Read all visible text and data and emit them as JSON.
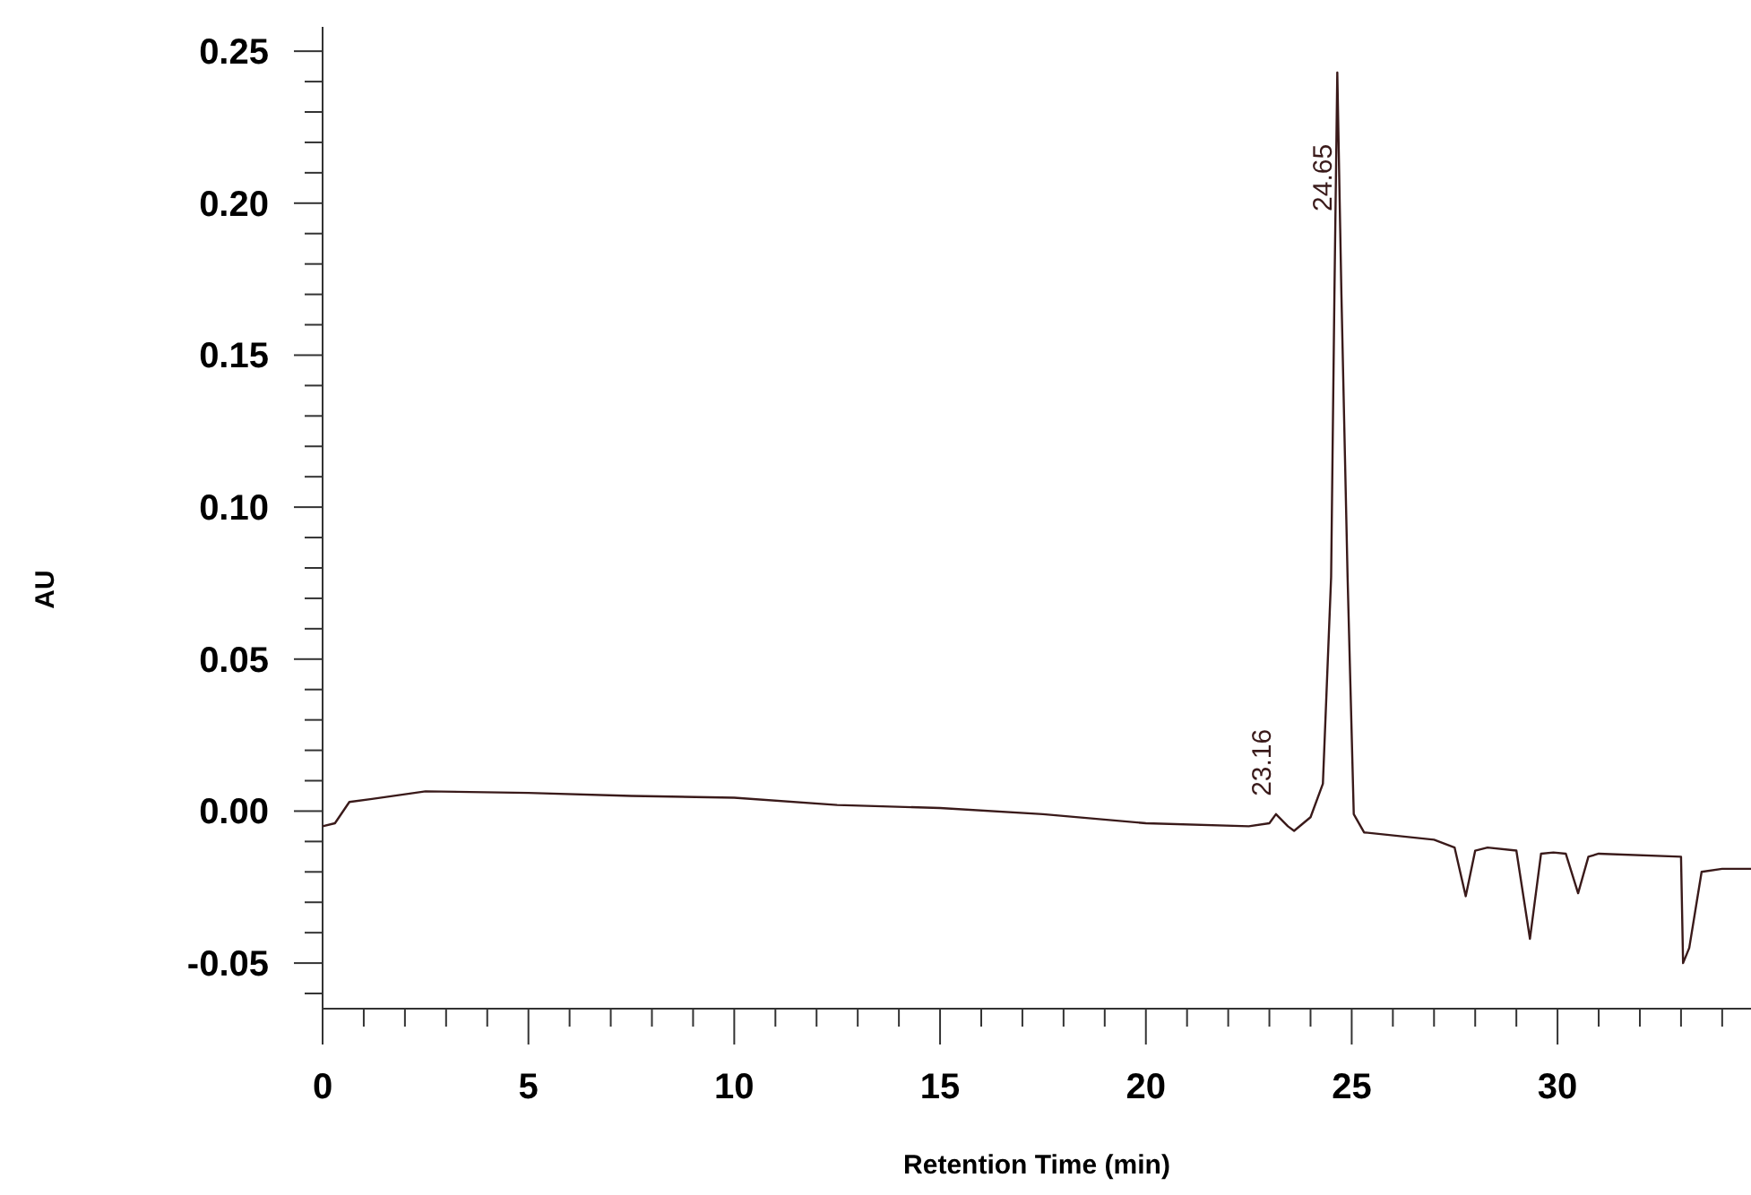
{
  "chart_data": {
    "type": "line",
    "xlabel": "Retention Time (min)",
    "ylabel": "AU",
    "xlim": [
      0,
      34.7
    ],
    "ylim": [
      -0.065,
      0.258
    ],
    "xticks": [
      0,
      {
        "value": 1,
        "label": null
      },
      {
        "value": 2,
        "label": null
      },
      {
        "value": 3,
        "label": null
      },
      {
        "value": 4,
        "label": null
      },
      5,
      {
        "value": 6,
        "label": null
      },
      {
        "value": 7,
        "label": null
      },
      {
        "value": 8,
        "label": null
      },
      {
        "value": 9,
        "label": null
      },
      10,
      {
        "value": 11,
        "label": null
      },
      {
        "value": 12,
        "label": null
      },
      {
        "value": 13,
        "label": null
      },
      {
        "value": 14,
        "label": null
      },
      15,
      {
        "value": 16,
        "label": null
      },
      {
        "value": 17,
        "label": null
      },
      {
        "value": 18,
        "label": null
      },
      {
        "value": 19,
        "label": null
      },
      20,
      {
        "value": 21,
        "label": null
      },
      {
        "value": 22,
        "label": null
      },
      {
        "value": 23,
        "label": null
      },
      {
        "value": 24,
        "label": null
      },
      25,
      {
        "value": 26,
        "label": null
      },
      {
        "value": 27,
        "label": null
      },
      {
        "value": 28,
        "label": null
      },
      {
        "value": 29,
        "label": null
      },
      30,
      {
        "value": 31,
        "label": null
      },
      {
        "value": 32,
        "label": null
      },
      {
        "value": 33,
        "label": null
      },
      {
        "value": 34,
        "label": null
      }
    ],
    "yticks": [
      {
        "value": -0.06,
        "label": null
      },
      {
        "value": -0.05,
        "label": "-0.05"
      },
      {
        "value": -0.04,
        "label": null
      },
      {
        "value": -0.03,
        "label": null
      },
      {
        "value": -0.02,
        "label": null
      },
      {
        "value": -0.01,
        "label": null
      },
      {
        "value": 0,
        "label": "0.00"
      },
      {
        "value": 0.01,
        "label": null
      },
      {
        "value": 0.02,
        "label": null
      },
      {
        "value": 0.03,
        "label": null
      },
      {
        "value": 0.04,
        "label": null
      },
      {
        "value": 0.05,
        "label": "0.05"
      },
      {
        "value": 0.06,
        "label": null
      },
      {
        "value": 0.07,
        "label": null
      },
      {
        "value": 0.08,
        "label": null
      },
      {
        "value": 0.09,
        "label": null
      },
      {
        "value": 0.1,
        "label": "0.10"
      },
      {
        "value": 0.11,
        "label": null
      },
      {
        "value": 0.12,
        "label": null
      },
      {
        "value": 0.13,
        "label": null
      },
      {
        "value": 0.14,
        "label": null
      },
      {
        "value": 0.15,
        "label": "0.15"
      },
      {
        "value": 0.16,
        "label": null
      },
      {
        "value": 0.17,
        "label": null
      },
      {
        "value": 0.18,
        "label": null
      },
      {
        "value": 0.19,
        "label": null
      },
      {
        "value": 0.2,
        "label": "0.20"
      },
      {
        "value": 0.21,
        "label": null
      },
      {
        "value": 0.22,
        "label": null
      },
      {
        "value": 0.23,
        "label": null
      },
      {
        "value": 0.24,
        "label": null
      },
      {
        "value": 0.25,
        "label": "0.25"
      }
    ],
    "grid": false,
    "marker": "none",
    "line_style": "solid",
    "series": [
      {
        "color": "#3a1a1a",
        "x": [
          0,
          0.3,
          0.65,
          1.2,
          2.5,
          5,
          7.5,
          10,
          12.5,
          15,
          17.5,
          20,
          22.5,
          23.0,
          23.16,
          23.45,
          23.6,
          24.0,
          24.3,
          24.5,
          24.58,
          24.65,
          24.75,
          24.9,
          25.05,
          25.3,
          27.0,
          27.5,
          27.77,
          28.0,
          28.3,
          29.0,
          29.33,
          29.6,
          29.9,
          30.2,
          30.5,
          30.75,
          31.0,
          33.0,
          33.05,
          33.2,
          33.5,
          34.0,
          34.7
        ],
        "values": [
          -0.005,
          -0.004,
          0.003,
          0.004,
          0.0065,
          0.006,
          0.005,
          0.0044,
          0.002,
          0.001,
          -0.001,
          -0.004,
          -0.005,
          -0.004,
          -0.001,
          -0.005,
          -0.0065,
          -0.002,
          0.009,
          0.077,
          0.17,
          0.243,
          0.17,
          0.077,
          -0.001,
          -0.007,
          -0.0094,
          -0.012,
          -0.028,
          -0.013,
          -0.012,
          -0.013,
          -0.042,
          -0.014,
          -0.0136,
          -0.014,
          -0.027,
          -0.015,
          -0.014,
          -0.015,
          -0.05,
          -0.045,
          -0.02,
          -0.019,
          -0.019
        ]
      }
    ],
    "annotations": [
      {
        "text": "23.16",
        "x": 23.16,
        "y": -0.001
      },
      {
        "text": "24.65",
        "x": 24.65,
        "y": 0.243
      }
    ]
  }
}
